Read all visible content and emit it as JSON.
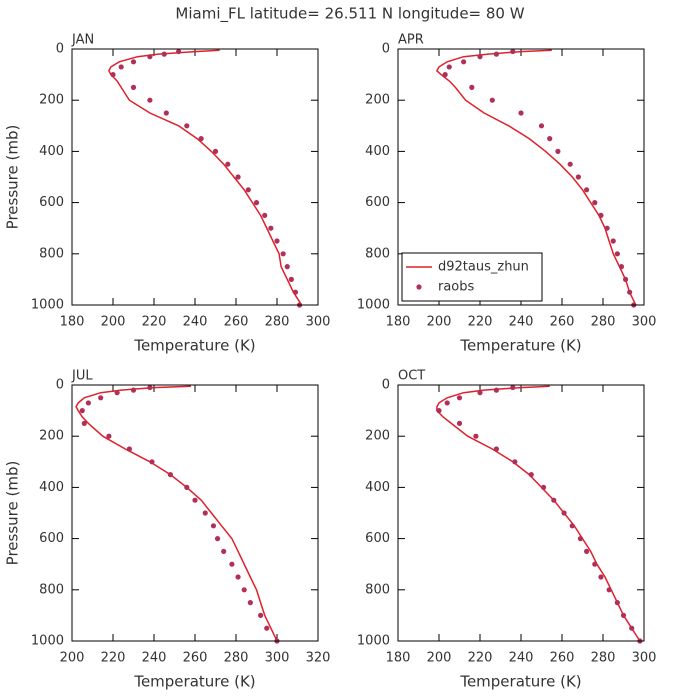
{
  "title": "Miami_FL   latitude= 26.511 N longitude= 80 W",
  "chart_data": [
    {
      "type": "line",
      "title": "JAN",
      "xlabel": "Temperature (K)",
      "ylabel": "Pressure (mb)",
      "xlim": [
        180,
        300
      ],
      "xticks": [
        180,
        200,
        220,
        240,
        260,
        280,
        300
      ],
      "ylim": [
        0,
        1000
      ],
      "yticks": [
        0,
        200,
        400,
        600,
        800,
        1000
      ],
      "y_inverted": true,
      "series": [
        {
          "color": "#e0202a",
          "style": "line",
          "y": [
            5,
            10,
            20,
            30,
            50,
            70,
            85,
            100,
            125,
            150,
            200,
            250,
            300,
            350,
            400,
            450,
            500,
            550,
            600,
            650,
            700,
            750,
            800,
            850,
            900,
            950,
            1000
          ],
          "x": [
            252,
            240,
            222,
            212,
            203,
            199,
            198,
            199,
            202,
            204,
            208,
            218,
            232,
            241,
            248,
            254,
            259,
            264,
            268,
            272,
            275,
            278,
            281,
            282,
            285,
            288,
            292
          ]
        },
        {
          "color": "#b0305a",
          "style": "marker",
          "y": [
            10,
            20,
            30,
            50,
            70,
            100,
            150,
            200,
            250,
            300,
            350,
            400,
            450,
            500,
            550,
            600,
            650,
            700,
            750,
            800,
            850,
            900,
            950,
            1000
          ],
          "x": [
            232,
            225,
            218,
            210,
            204,
            200,
            210,
            218,
            226,
            236,
            243,
            250,
            256,
            261,
            266,
            270,
            274,
            277,
            280,
            283,
            285,
            287,
            289,
            291
          ]
        }
      ]
    },
    {
      "type": "line",
      "title": "APR",
      "xlabel": "Temperature (K)",
      "xlim": [
        180,
        300
      ],
      "xticks": [
        180,
        200,
        220,
        240,
        260,
        280,
        300
      ],
      "ylim": [
        0,
        1000
      ],
      "yticks": [
        0,
        200,
        400,
        600,
        800,
        1000
      ],
      "y_inverted": true,
      "legend": "lower left",
      "series": [
        {
          "name": "d92taus_zhun",
          "color": "#e0202a",
          "style": "line",
          "y": [
            5,
            10,
            20,
            30,
            50,
            70,
            85,
            100,
            125,
            150,
            200,
            250,
            300,
            350,
            400,
            450,
            500,
            550,
            600,
            650,
            700,
            750,
            800,
            850,
            900,
            950,
            1000
          ],
          "x": [
            255,
            240,
            224,
            212,
            204,
            200,
            199,
            201,
            205,
            208,
            213,
            222,
            234,
            244,
            252,
            259,
            265,
            270,
            274,
            278,
            281,
            283,
            285,
            288,
            291,
            293,
            296
          ]
        },
        {
          "name": "raobs",
          "color": "#b0305a",
          "style": "marker",
          "y": [
            10,
            20,
            30,
            50,
            70,
            100,
            150,
            200,
            250,
            300,
            350,
            400,
            450,
            500,
            550,
            600,
            650,
            700,
            750,
            800,
            850,
            900,
            950,
            1000
          ],
          "x": [
            236,
            228,
            220,
            212,
            205,
            203,
            216,
            226,
            240,
            250,
            254,
            258,
            264,
            268,
            272,
            276,
            279,
            282,
            285,
            287,
            289,
            291,
            293,
            295
          ]
        }
      ]
    },
    {
      "type": "line",
      "title": "JUL",
      "xlabel": "Temperature (K)",
      "ylabel": "Pressure (mb)",
      "xlim": [
        200,
        320
      ],
      "xticks": [
        200,
        220,
        240,
        260,
        280,
        300,
        320
      ],
      "ylim": [
        0,
        1000
      ],
      "yticks": [
        0,
        200,
        400,
        600,
        800,
        1000
      ],
      "y_inverted": true,
      "series": [
        {
          "color": "#e0202a",
          "style": "line",
          "y": [
            5,
            10,
            20,
            30,
            50,
            70,
            85,
            100,
            125,
            150,
            200,
            250,
            300,
            350,
            400,
            450,
            500,
            550,
            600,
            650,
            700,
            750,
            800,
            850,
            900,
            950,
            1000
          ],
          "x": [
            258,
            240,
            224,
            214,
            206,
            203,
            202,
            203,
            205,
            208,
            215,
            226,
            238,
            248,
            256,
            263,
            268,
            273,
            278,
            281,
            284,
            287,
            290,
            292,
            294,
            297,
            300
          ]
        },
        {
          "color": "#b0305a",
          "style": "marker",
          "y": [
            10,
            20,
            30,
            50,
            70,
            100,
            150,
            200,
            250,
            300,
            350,
            400,
            450,
            500,
            550,
            600,
            650,
            700,
            750,
            800,
            850,
            900,
            950,
            1000
          ],
          "x": [
            238,
            230,
            222,
            214,
            208,
            205,
            206,
            218,
            228,
            239,
            248,
            256,
            260,
            265,
            269,
            271,
            274,
            278,
            281,
            284,
            287,
            292,
            295,
            300
          ]
        }
      ]
    },
    {
      "type": "line",
      "title": "OCT",
      "xlabel": "Temperature (K)",
      "xlim": [
        180,
        300
      ],
      "xticks": [
        180,
        200,
        220,
        240,
        260,
        280,
        300
      ],
      "ylim": [
        0,
        1000
      ],
      "yticks": [
        0,
        200,
        400,
        600,
        800,
        1000
      ],
      "y_inverted": true,
      "series": [
        {
          "color": "#e0202a",
          "style": "line",
          "y": [
            5,
            10,
            20,
            30,
            50,
            70,
            85,
            100,
            125,
            150,
            200,
            250,
            300,
            350,
            400,
            450,
            500,
            550,
            600,
            650,
            700,
            750,
            800,
            850,
            900,
            950,
            1000
          ],
          "x": [
            254,
            240,
            222,
            212,
            204,
            200,
            199,
            199,
            202,
            206,
            214,
            226,
            236,
            244,
            250,
            256,
            261,
            266,
            270,
            274,
            277,
            281,
            284,
            287,
            290,
            294,
            298
          ]
        },
        {
          "color": "#b0305a",
          "style": "marker",
          "y": [
            10,
            20,
            30,
            50,
            70,
            100,
            150,
            200,
            250,
            300,
            350,
            400,
            450,
            500,
            550,
            600,
            650,
            700,
            750,
            800,
            850,
            900,
            950,
            1000
          ],
          "x": [
            236,
            228,
            220,
            210,
            204,
            200,
            210,
            218,
            228,
            237,
            245,
            251,
            256,
            261,
            265,
            269,
            272,
            276,
            279,
            283,
            287,
            290,
            294,
            298
          ]
        }
      ]
    }
  ]
}
